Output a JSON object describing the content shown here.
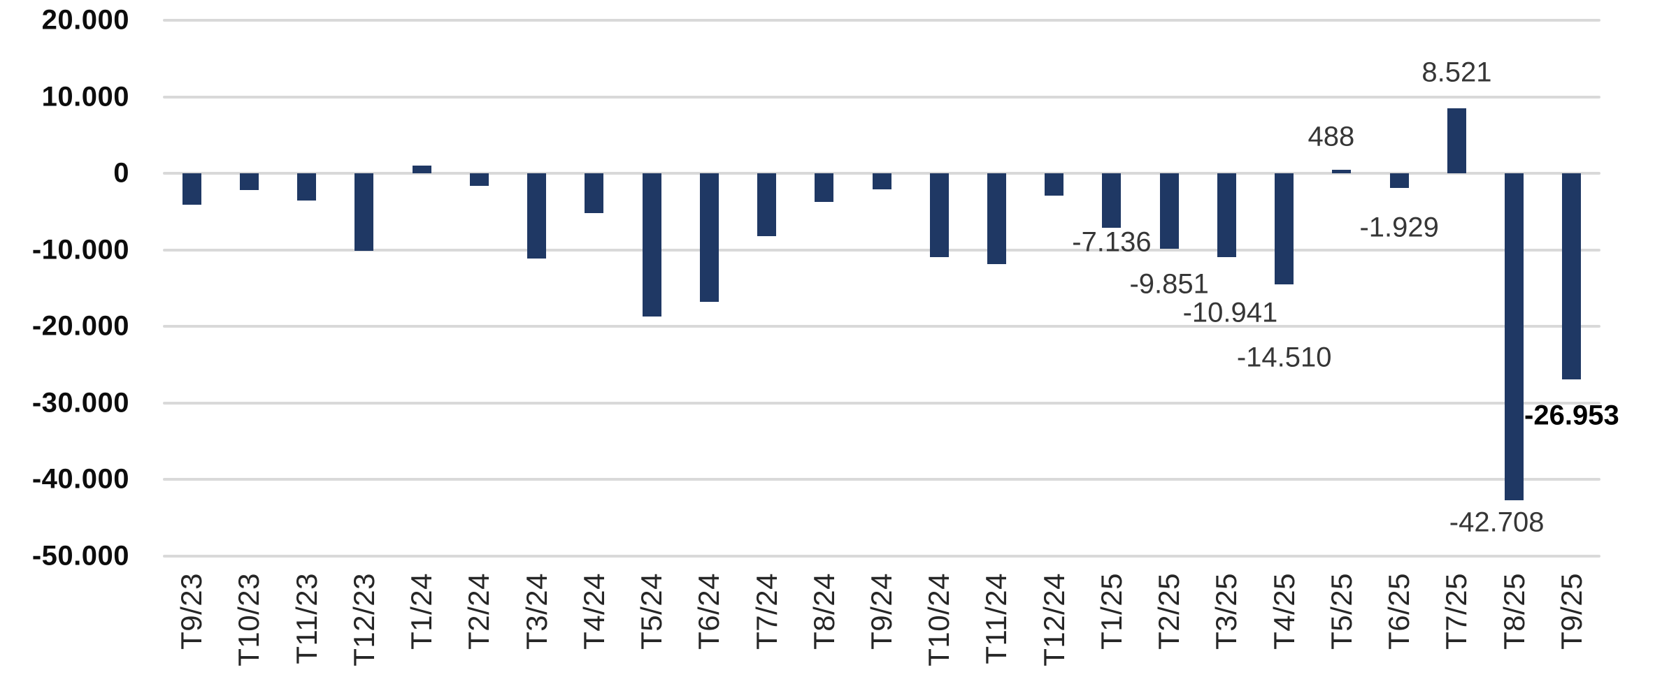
{
  "chart_data": {
    "type": "bar",
    "title": "",
    "categories": [
      "T9/23",
      "T10/23",
      "T11/23",
      "T12/23",
      "T1/24",
      "T2/24",
      "T3/24",
      "T4/24",
      "T5/24",
      "T6/24",
      "T7/24",
      "T8/24",
      "T9/24",
      "T10/24",
      "T11/24",
      "T12/24",
      "T1/25",
      "T2/25",
      "T3/25",
      "T4/25",
      "T5/25",
      "T6/25",
      "T7/25",
      "T8/25",
      "T9/25"
    ],
    "values": [
      -4100,
      -2200,
      -3600,
      -10100,
      1000,
      -1600,
      -11100,
      -5200,
      -18700,
      -16800,
      -8200,
      -3700,
      -2100,
      -11000,
      -11900,
      -2900,
      -7136,
      -9851,
      -10941,
      -14510,
      488,
      -1929,
      8521,
      -42708,
      -26953
    ],
    "data_labels": [
      null,
      null,
      null,
      null,
      null,
      null,
      null,
      null,
      null,
      null,
      null,
      null,
      null,
      null,
      null,
      null,
      "-7.136",
      "-9.851",
      "-10.941",
      "-14.510",
      "488",
      "-1.929",
      "8.521",
      "-42.708",
      "-26.953"
    ],
    "bold_label_index": 24,
    "y_ticks": [
      {
        "value": 20000,
        "label": "20.000"
      },
      {
        "value": 10000,
        "label": "10.000"
      },
      {
        "value": 0,
        "label": "0"
      },
      {
        "value": -10000,
        "label": "-10.000"
      },
      {
        "value": -20000,
        "label": "-20.000"
      },
      {
        "value": -30000,
        "label": "-30.000"
      },
      {
        "value": -40000,
        "label": "-40.000"
      },
      {
        "value": -50000,
        "label": "-50.000"
      }
    ],
    "ylim": [
      -50000,
      20000
    ],
    "xlabel": "",
    "ylabel": "",
    "grid": true,
    "legend_position": "none",
    "colors": {
      "bar": "#1F3864",
      "gridline": "#D9D9D9",
      "y_tick_text": "#0d0d0d",
      "x_tick_text": "#262626",
      "data_label_text": "#363636",
      "bold_data_label_text": "#000000",
      "background": "#ffffff"
    }
  }
}
